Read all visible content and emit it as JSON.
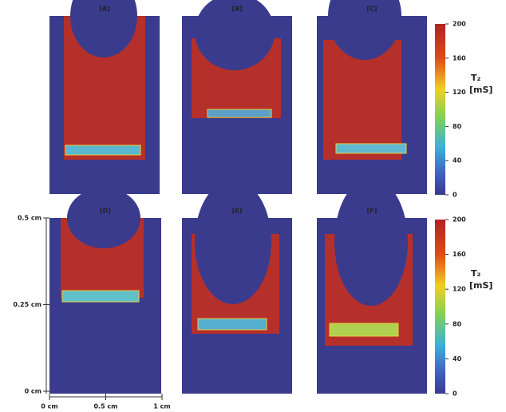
{
  "panels": [
    {
      "label": "[A]"
    },
    {
      "label": "[B]"
    },
    {
      "label": "[C]"
    },
    {
      "label": "[D]"
    },
    {
      "label": "[E]"
    },
    {
      "label": "[F]"
    }
  ],
  "colorbars": [
    {
      "ticks": [
        "200",
        "160",
        "120",
        "80",
        "40",
        "0"
      ],
      "title": "T₂",
      "unit": "[mS]"
    },
    {
      "ticks": [
        "200",
        "160",
        "120",
        "80",
        "40",
        "0"
      ],
      "title": "T₂",
      "unit": "[mS]"
    }
  ],
  "axes": {
    "y_labels": [
      "0.5 cm",
      "0.25 cm",
      "0 cm"
    ],
    "x_labels": [
      "0 cm",
      "0.5 cm",
      "1 cm"
    ]
  }
}
